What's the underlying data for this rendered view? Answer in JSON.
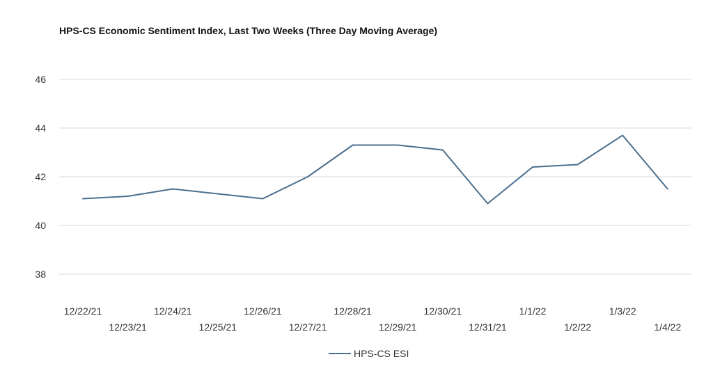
{
  "chart_data": {
    "type": "line",
    "title": "HPS-CS Economic Sentiment Index, Last Two Weeks (Three Day Moving Average)",
    "categories": [
      "12/22/21",
      "12/23/21",
      "12/24/21",
      "12/25/21",
      "12/26/21",
      "12/27/21",
      "12/28/21",
      "12/29/21",
      "12/30/21",
      "12/31/21",
      "1/1/22",
      "1/2/22",
      "1/3/22",
      "1/4/22"
    ],
    "series": [
      {
        "name": "HPS-CS ESI",
        "color": "#4a6f8f",
        "values": [
          41.1,
          41.2,
          41.5,
          41.3,
          41.1,
          42.0,
          43.3,
          43.3,
          43.1,
          40.9,
          42.4,
          42.5,
          43.7,
          41.5
        ]
      }
    ],
    "yticks": [
      38,
      40,
      42,
      44,
      46
    ],
    "ylim": [
      37,
      47
    ],
    "xlabel": "",
    "ylabel": "",
    "grid": true,
    "legend_position": "bottom"
  }
}
